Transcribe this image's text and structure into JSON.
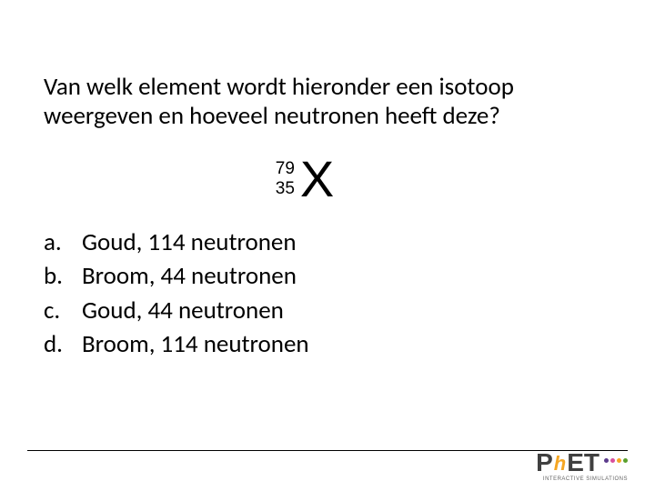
{
  "question": "Van welk element wordt hieronder een isotoop weergeven en hoeveel neutronen heeft deze?",
  "isotope": {
    "mass": "79",
    "atomic": "35",
    "symbol": "X"
  },
  "options": [
    {
      "letter": "a.",
      "text": "Goud, 114 neutronen"
    },
    {
      "letter": "b.",
      "text": "Broom, 44 neutronen"
    },
    {
      "letter": "c.",
      "text": "Goud, 44 neutronen"
    },
    {
      "letter": "d.",
      "text": "Broom, 114 neutronen"
    }
  ],
  "logo": {
    "p": "P",
    "h": "h",
    "et": "ET",
    "sub": "INTERACTIVE SIMULATIONS",
    "dot_colors": [
      "#5b3b8c",
      "#d94f9d",
      "#f5a623",
      "#5aa02c"
    ]
  },
  "colors": {
    "text": "#000000",
    "background": "#ffffff"
  }
}
